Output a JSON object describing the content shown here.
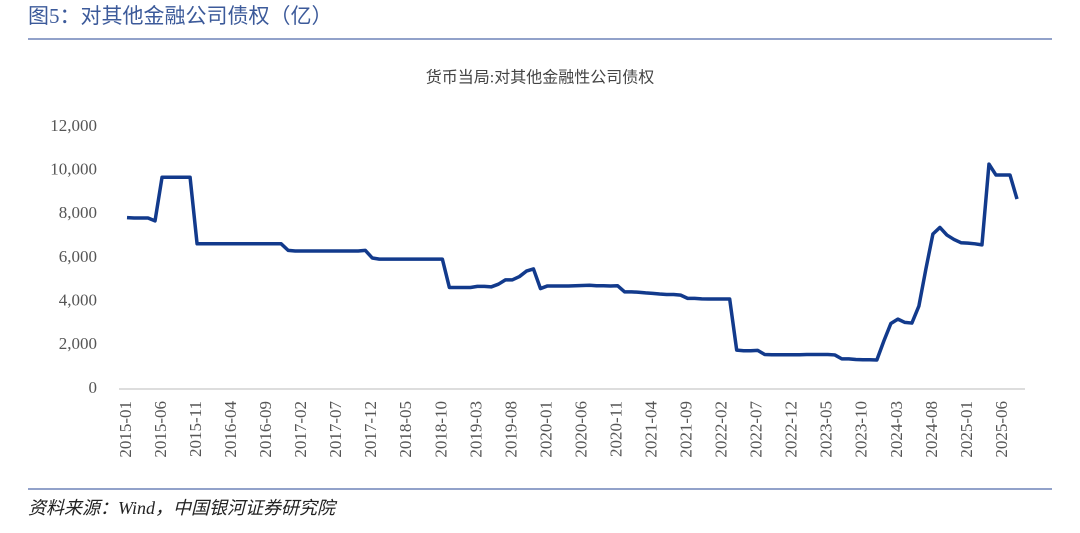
{
  "header": {
    "title": "图5：对其他金融公司债权（亿）"
  },
  "chart_data": {
    "type": "line",
    "title": "货币当局:对其他金融性公司债权",
    "color": "#123a8c",
    "categories": [
      "2015-01",
      null,
      null,
      null,
      null,
      "2015-06",
      null,
      null,
      null,
      null,
      "2015-11",
      null,
      null,
      null,
      null,
      "2016-04",
      null,
      null,
      null,
      null,
      "2016-09",
      null,
      null,
      null,
      null,
      "2017-02",
      null,
      null,
      null,
      null,
      "2017-07",
      null,
      null,
      null,
      null,
      "2017-12",
      null,
      null,
      null,
      null,
      "2018-05",
      null,
      null,
      null,
      null,
      "2018-10",
      null,
      null,
      null,
      null,
      "2019-03",
      null,
      null,
      null,
      null,
      "2019-08",
      null,
      null,
      null,
      null,
      "2020-01",
      null,
      null,
      null,
      null,
      "2020-06",
      null,
      null,
      null,
      null,
      "2020-11",
      null,
      null,
      null,
      null,
      "2021-04",
      null,
      null,
      null,
      null,
      "2021-09",
      null,
      null,
      null,
      null,
      "2022-02",
      null,
      null,
      null,
      null,
      "2022-07",
      null,
      null,
      null,
      null,
      "2022-12",
      null,
      null,
      null,
      null,
      "2023-05",
      null,
      null,
      null,
      null,
      "2023-10",
      null,
      null,
      null,
      null,
      "2024-03",
      null,
      null,
      null,
      null,
      "2024-08",
      null,
      null,
      null,
      null,
      "2025-01",
      null,
      null,
      null,
      null,
      "2025-06",
      null,
      null
    ],
    "values": [
      7850,
      7830,
      7830,
      7830,
      7700,
      9700,
      9700,
      9700,
      9700,
      9700,
      6650,
      6650,
      6650,
      6650,
      6650,
      6650,
      6650,
      6650,
      6650,
      6650,
      6650,
      6650,
      6650,
      6350,
      6320,
      6320,
      6320,
      6320,
      6320,
      6320,
      6320,
      6320,
      6320,
      6320,
      6350,
      6000,
      5950,
      5950,
      5950,
      5950,
      5950,
      5950,
      5950,
      5950,
      5950,
      5950,
      4650,
      4650,
      4650,
      4650,
      4700,
      4700,
      4680,
      4800,
      5000,
      5000,
      5150,
      5400,
      5500,
      4600,
      4720,
      4720,
      4720,
      4720,
      4730,
      4740,
      4750,
      4730,
      4730,
      4720,
      4730,
      4450,
      4450,
      4430,
      4400,
      4380,
      4350,
      4330,
      4330,
      4300,
      4150,
      4150,
      4130,
      4120,
      4120,
      4120,
      4120,
      1780,
      1750,
      1750,
      1770,
      1580,
      1570,
      1570,
      1570,
      1570,
      1570,
      1580,
      1580,
      1580,
      1580,
      1560,
      1380,
      1380,
      1350,
      1340,
      1340,
      1330,
      2200,
      3000,
      3200,
      3050,
      3020,
      3800,
      5500,
      7100,
      7400,
      7050,
      6850,
      6700,
      6680,
      6650,
      6600,
      10300,
      9800,
      9800,
      9800,
      8700
    ],
    "ylim": [
      0,
      12000
    ],
    "yticks": [
      0,
      {
        "value": 2000,
        "label": "2,000"
      },
      {
        "value": 4000,
        "label": "4,000"
      },
      {
        "value": 6000,
        "label": "6,000"
      },
      {
        "value": 8000,
        "label": "8,000"
      },
      {
        "value": 10000,
        "label": "10,000"
      },
      {
        "value": 12000,
        "label": "12,000"
      }
    ],
    "grid": false
  },
  "footer": {
    "source": "资料来源：Wind，中国银河证券研究院"
  }
}
